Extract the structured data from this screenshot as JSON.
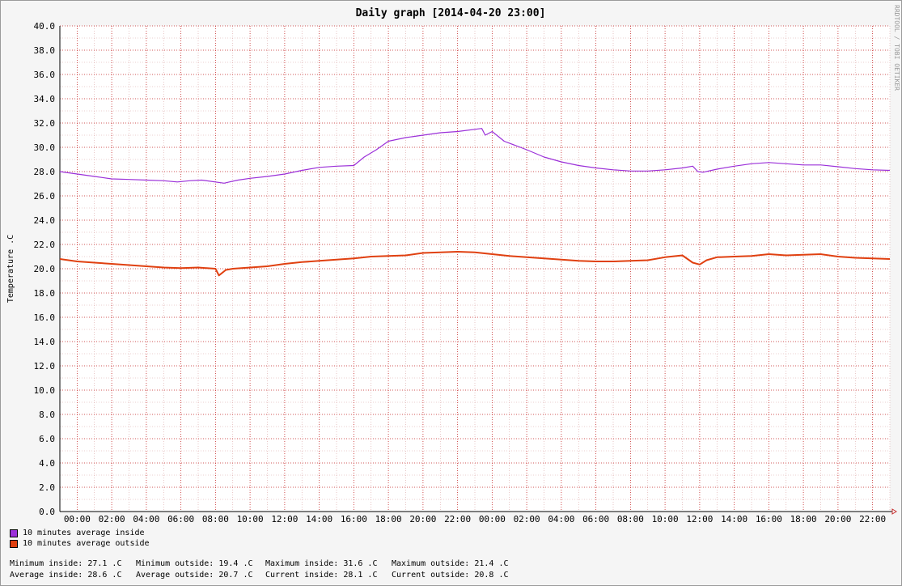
{
  "chart_data": {
    "type": "line",
    "title": "Daily graph [2014-04-20 23:00]",
    "ylabel": "Temperature .C",
    "watermark": "RRDTOOL / TOBI OETIKER",
    "ylim": [
      0,
      40
    ],
    "y_ticks": [
      "0.0",
      "2.0",
      "4.0",
      "6.0",
      "8.0",
      "10.0",
      "12.0",
      "14.0",
      "16.0",
      "18.0",
      "20.0",
      "22.0",
      "24.0",
      "26.0",
      "28.0",
      "30.0",
      "32.0",
      "34.0",
      "36.0",
      "38.0",
      "40.0"
    ],
    "x_ticks": [
      "00:00",
      "02:00",
      "04:00",
      "06:00",
      "08:00",
      "10:00",
      "12:00",
      "14:00",
      "16:00",
      "18:00",
      "20:00",
      "22:00",
      "00:00",
      "02:00",
      "04:00",
      "06:00",
      "08:00",
      "10:00",
      "12:00",
      "14:00",
      "16:00",
      "18:00",
      "20:00",
      "22:00"
    ],
    "x_tick_hours": [
      1,
      3,
      5,
      7,
      9,
      11,
      13,
      15,
      17,
      19,
      21,
      23,
      25,
      27,
      29,
      31,
      33,
      35,
      37,
      39,
      41,
      43,
      45,
      47
    ],
    "x_range_hours": [
      0,
      48
    ],
    "grid": true,
    "series": [
      {
        "name": "10 minutes average inside",
        "color": "#9b30d9",
        "x": [
          0,
          1,
          2,
          3,
          4,
          5,
          6,
          6.8,
          7.5,
          8.2,
          9.5,
          9.8,
          10.3,
          11,
          12,
          13,
          14,
          15,
          16,
          17,
          17.6,
          18.3,
          19,
          20,
          21,
          22,
          23,
          24.4,
          24.6,
          25,
          25.7,
          27,
          28,
          29,
          30,
          31,
          32,
          33,
          34,
          35,
          36,
          36.6,
          36.9,
          37.2,
          38,
          39,
          40,
          41,
          42,
          43,
          44,
          45,
          46,
          47,
          48
        ],
        "y": [
          28.0,
          27.8,
          27.6,
          27.4,
          27.35,
          27.3,
          27.25,
          27.15,
          27.25,
          27.3,
          27.05,
          27.15,
          27.3,
          27.45,
          27.6,
          27.8,
          28.1,
          28.35,
          28.45,
          28.5,
          29.2,
          29.8,
          30.5,
          30.8,
          31.0,
          31.2,
          31.3,
          31.55,
          31.0,
          31.3,
          30.5,
          29.8,
          29.2,
          28.8,
          28.5,
          28.3,
          28.15,
          28.05,
          28.05,
          28.15,
          28.3,
          28.45,
          28.0,
          27.95,
          28.2,
          28.45,
          28.65,
          28.75,
          28.65,
          28.55,
          28.55,
          28.4,
          28.25,
          28.15,
          28.1
        ]
      },
      {
        "name": "10 minutes average outside",
        "color": "#e04010",
        "x": [
          0,
          1,
          2,
          3,
          4,
          5,
          6,
          7,
          8,
          9.0,
          9.2,
          9.6,
          10,
          11,
          12,
          13,
          14,
          15,
          16,
          17,
          18,
          19,
          20,
          21,
          22,
          23,
          24,
          25,
          26,
          27,
          28,
          29,
          30,
          31,
          32,
          33,
          34,
          35,
          36,
          36.6,
          37,
          37.4,
          38,
          39,
          40,
          41,
          42,
          43,
          44,
          45,
          46,
          47,
          48
        ],
        "y": [
          20.8,
          20.6,
          20.5,
          20.4,
          20.3,
          20.2,
          20.1,
          20.05,
          20.1,
          20.0,
          19.45,
          19.9,
          20.0,
          20.1,
          20.2,
          20.4,
          20.55,
          20.65,
          20.75,
          20.85,
          21.0,
          21.05,
          21.1,
          21.3,
          21.35,
          21.4,
          21.35,
          21.2,
          21.05,
          20.95,
          20.85,
          20.75,
          20.65,
          20.6,
          20.6,
          20.65,
          20.7,
          20.95,
          21.1,
          20.5,
          20.35,
          20.7,
          20.95,
          21.0,
          21.05,
          21.2,
          21.1,
          21.15,
          21.2,
          21.0,
          20.9,
          20.85,
          20.8
        ]
      }
    ]
  },
  "stats": [
    [
      "Minimum inside: 27.1 .C",
      "Minimum outside: 19.4 .C",
      "Maximum inside: 31.6 .C",
      "Maximum outside: 21.4 .C"
    ],
    [
      "Average inside: 28.6 .C",
      "Average outside: 20.7 .C",
      "Current inside: 28.1 .C",
      "Current outside: 20.8 .C"
    ]
  ]
}
